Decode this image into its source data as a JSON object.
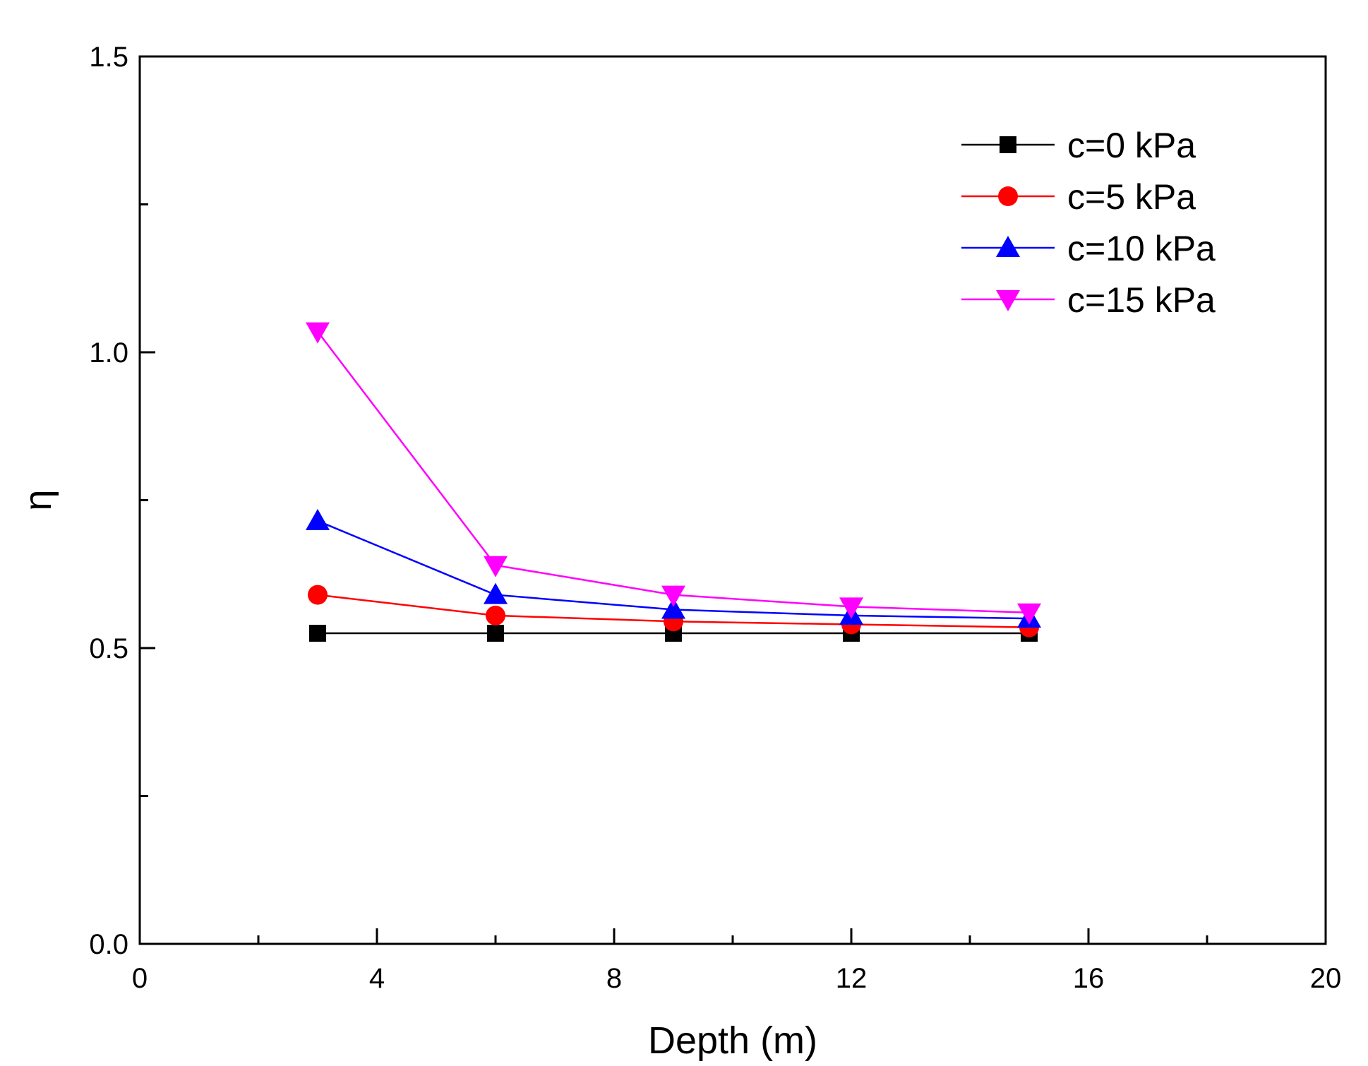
{
  "chart_data": {
    "type": "line",
    "title": "",
    "xlabel": "Depth (m)",
    "ylabel": "η",
    "xlim": [
      0,
      20
    ],
    "ylim": [
      0.0,
      1.5
    ],
    "x_ticks": [
      0,
      4,
      8,
      12,
      16,
      20
    ],
    "x_tick_labels": [
      "0",
      "4",
      "8",
      "12",
      "16",
      "20"
    ],
    "x_minor_ticks": [
      2,
      6,
      10,
      14,
      18
    ],
    "y_ticks": [
      0.0,
      0.5,
      1.0,
      1.5
    ],
    "y_tick_labels": [
      "0.0",
      "0.5",
      "1.0",
      "1.5"
    ],
    "y_minor_ticks": [
      0.25,
      0.75,
      1.25
    ],
    "grid": false,
    "legend_position": "top-right",
    "x": [
      3,
      6,
      9,
      12,
      15
    ],
    "series": [
      {
        "name": "c=0 kPa",
        "color": "#000000",
        "marker": "square",
        "values": [
          0.525,
          0.525,
          0.525,
          0.525,
          0.525
        ]
      },
      {
        "name": "c=5 kPa",
        "color": "#ff0000",
        "marker": "circle",
        "values": [
          0.59,
          0.555,
          0.545,
          0.54,
          0.535
        ]
      },
      {
        "name": "c=10 kPa",
        "color": "#0000ff",
        "marker": "triangle-up",
        "values": [
          0.715,
          0.59,
          0.565,
          0.555,
          0.55
        ]
      },
      {
        "name": "c=15 kPa",
        "color": "#ff00ff",
        "marker": "triangle-down",
        "values": [
          1.035,
          0.64,
          0.59,
          0.57,
          0.56
        ]
      }
    ]
  }
}
